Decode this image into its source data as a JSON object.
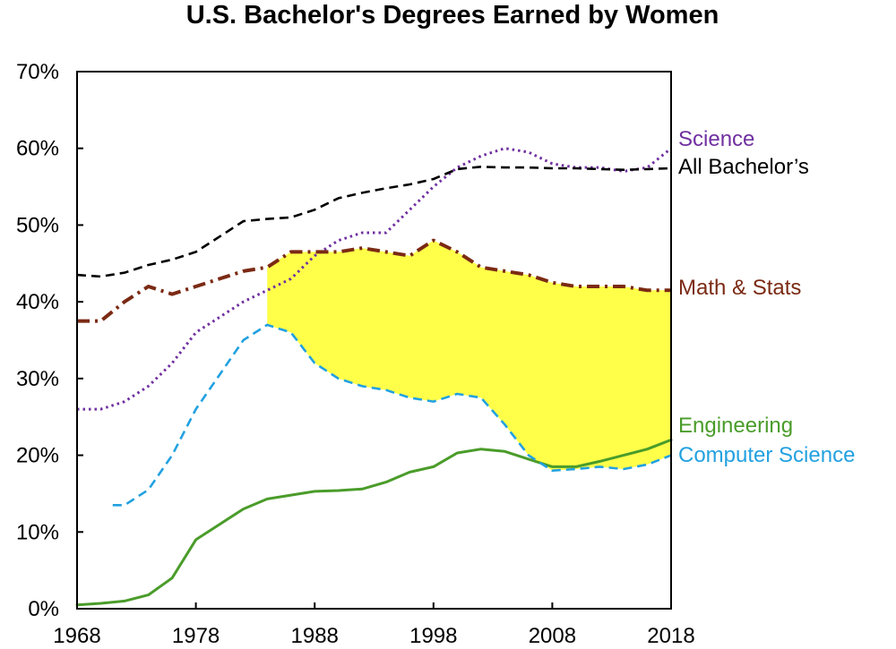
{
  "chart_data": {
    "type": "line",
    "title": "U.S. Bachelor's Degrees Earned by Women",
    "xlabel": "",
    "ylabel": "",
    "xlim": [
      1968,
      2018
    ],
    "ylim": [
      0,
      70
    ],
    "x_ticks": [
      "1968",
      "1978",
      "1988",
      "1998",
      "2008",
      "2018"
    ],
    "y_ticks": [
      "0%",
      "10%",
      "20%",
      "30%",
      "40%",
      "50%",
      "60%",
      "70%"
    ],
    "grid": false,
    "series": [
      {
        "name": "Science",
        "color": "#7030a0",
        "style": "dotted",
        "x": [
          1968,
          1970,
          1972,
          1974,
          1976,
          1978,
          1980,
          1982,
          1984,
          1986,
          1988,
          1990,
          1992,
          1994,
          1996,
          1998,
          2000,
          2002,
          2004,
          2006,
          2008,
          2010,
          2012,
          2014,
          2016,
          2018
        ],
        "values": [
          26,
          26,
          27,
          29,
          32,
          36,
          38,
          40,
          41.5,
          43,
          46,
          48,
          49,
          49,
          52,
          55,
          57.5,
          59,
          60,
          59.5,
          58,
          57.5,
          57.5,
          57,
          57.5,
          60
        ]
      },
      {
        "name": "All Bachelor’s",
        "color": "#000000",
        "style": "dashed",
        "x": [
          1968,
          1970,
          1972,
          1974,
          1976,
          1978,
          1980,
          1982,
          1984,
          1986,
          1988,
          1990,
          1992,
          1994,
          1996,
          1998,
          2000,
          2002,
          2004,
          2006,
          2008,
          2010,
          2012,
          2014,
          2016,
          2018
        ],
        "values": [
          43.5,
          43.3,
          43.8,
          44.8,
          45.5,
          46.5,
          48.5,
          50.5,
          50.8,
          51,
          52,
          53.5,
          54.2,
          54.8,
          55.3,
          56,
          57.3,
          57.6,
          57.5,
          57.5,
          57.4,
          57.4,
          57.3,
          57.2,
          57.3,
          57.4
        ]
      },
      {
        "name": "Math & Stats",
        "color": "#7b2a14",
        "style": "dashdot",
        "x": [
          1968,
          1970,
          1972,
          1974,
          1976,
          1978,
          1980,
          1982,
          1984,
          1986,
          1988,
          1990,
          1992,
          1994,
          1996,
          1998,
          2000,
          2002,
          2004,
          2006,
          2008,
          2010,
          2012,
          2014,
          2016,
          2018
        ],
        "values": [
          37.5,
          37.5,
          40,
          42,
          41,
          42,
          43,
          44,
          44.5,
          46.5,
          46.5,
          46.5,
          47,
          46.5,
          46,
          48,
          46.5,
          44.5,
          44,
          43.5,
          42.5,
          42,
          42,
          42,
          41.5,
          41.5
        ]
      },
      {
        "name": "Engineering",
        "color": "#4a9c2a",
        "style": "solid",
        "x": [
          1968,
          1970,
          1972,
          1974,
          1976,
          1978,
          1980,
          1982,
          1984,
          1986,
          1988,
          1990,
          1992,
          1994,
          1996,
          1998,
          2000,
          2002,
          2004,
          2006,
          2008,
          2010,
          2012,
          2014,
          2016,
          2018
        ],
        "values": [
          0.5,
          0.7,
          1,
          1.8,
          4,
          9,
          11,
          13,
          14.3,
          14.8,
          15.3,
          15.4,
          15.6,
          16.5,
          17.8,
          18.5,
          20.3,
          20.8,
          20.5,
          19.5,
          18.5,
          18.5,
          19.2,
          20,
          20.8,
          22
        ]
      },
      {
        "name": "Computer Science",
        "color": "#22a1e0",
        "style": "dashed",
        "x": [
          1971,
          1972,
          1974,
          1976,
          1978,
          1980,
          1982,
          1984,
          1986,
          1988,
          1990,
          1992,
          1994,
          1996,
          1998,
          2000,
          2002,
          2004,
          2006,
          2008,
          2010,
          2012,
          2014,
          2016,
          2018
        ],
        "values": [
          13.5,
          13.5,
          15.5,
          20,
          26,
          30.5,
          35,
          37,
          36,
          32,
          30,
          29,
          28.5,
          27.5,
          27,
          28,
          27.5,
          24,
          20,
          18,
          18.2,
          18.5,
          18.2,
          18.8,
          20
        ]
      }
    ],
    "highlight": {
      "color": "#ffff4a",
      "from_year": 1984,
      "between": [
        "Math & Stats",
        "Computer Science"
      ]
    }
  }
}
